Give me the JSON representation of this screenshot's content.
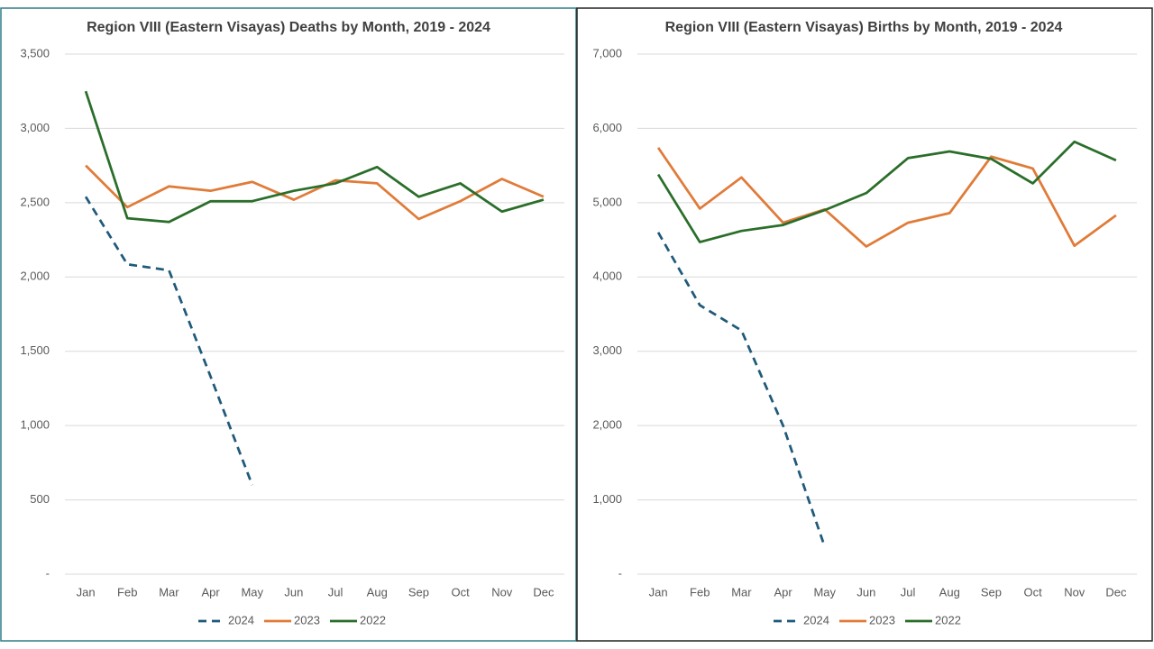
{
  "chart_data": [
    {
      "type": "line",
      "title": "Region VIII (Eastern Visayas) Deaths by Month, 2019 - 2024",
      "categories": [
        "Jan",
        "Feb",
        "Mar",
        "Apr",
        "May",
        "Jun",
        "Jul",
        "Aug",
        "Sep",
        "Oct",
        "Nov",
        "Dec"
      ],
      "series": [
        {
          "name": "2024",
          "color": "#1f5a7a",
          "line_style": "dashed",
          "values": [
            2540,
            2085,
            2045,
            1330,
            600,
            null,
            null,
            null,
            null,
            null,
            null,
            null
          ]
        },
        {
          "name": "2023",
          "color": "#e07b39",
          "line_style": "solid",
          "values": [
            2750,
            2470,
            2610,
            2580,
            2640,
            2520,
            2650,
            2630,
            2390,
            2510,
            2660,
            2540
          ]
        },
        {
          "name": "2022",
          "color": "#2a6e2a",
          "line_style": "solid",
          "values": [
            3250,
            2395,
            2370,
            2510,
            2510,
            2580,
            2630,
            2740,
            2540,
            2630,
            2440,
            2520
          ]
        }
      ],
      "ylim": [
        0,
        3500
      ],
      "yticks": [
        {
          "value": 0,
          "label": "-"
        },
        500,
        {
          "value": 1000,
          "label": "1,000"
        },
        {
          "value": 1500,
          "label": "1,500"
        },
        {
          "value": 2000,
          "label": "2,000"
        },
        {
          "value": 2500,
          "label": "2,500"
        },
        {
          "value": 3000,
          "label": "3,000"
        },
        {
          "value": 3500,
          "label": "3,500"
        }
      ],
      "grid": true,
      "legend": "bottom"
    },
    {
      "type": "line",
      "title": "Region VIII (Eastern Visayas) Births by Month, 2019 - 2024",
      "categories": [
        "Jan",
        "Feb",
        "Mar",
        "Apr",
        "May",
        "Jun",
        "Jul",
        "Aug",
        "Sep",
        "Oct",
        "Nov",
        "Dec"
      ],
      "series": [
        {
          "name": "2024",
          "color": "#1f5a7a",
          "line_style": "dashed",
          "values": [
            4600,
            3620,
            3280,
            2000,
            370,
            null,
            null,
            null,
            null,
            null,
            null,
            null
          ]
        },
        {
          "name": "2023",
          "color": "#e07b39",
          "line_style": "solid",
          "values": [
            5740,
            4920,
            5340,
            4730,
            4910,
            4410,
            4730,
            4860,
            5620,
            5460,
            4420,
            4830
          ]
        },
        {
          "name": "2022",
          "color": "#2a6e2a",
          "line_style": "solid",
          "values": [
            5380,
            4470,
            4620,
            4700,
            4900,
            5130,
            5600,
            5690,
            5590,
            5260,
            5820,
            5570
          ]
        }
      ],
      "ylim": [
        0,
        7000
      ],
      "yticks": [
        {
          "value": 0,
          "label": "-"
        },
        {
          "value": 1000,
          "label": "1,000"
        },
        {
          "value": 2000,
          "label": "2,000"
        },
        {
          "value": 3000,
          "label": "3,000"
        },
        {
          "value": 4000,
          "label": "4,000"
        },
        {
          "value": 5000,
          "label": "5,000"
        },
        {
          "value": 6000,
          "label": "6,000"
        },
        {
          "value": 7000,
          "label": "7,000"
        }
      ],
      "grid": true,
      "legend": "bottom"
    }
  ]
}
